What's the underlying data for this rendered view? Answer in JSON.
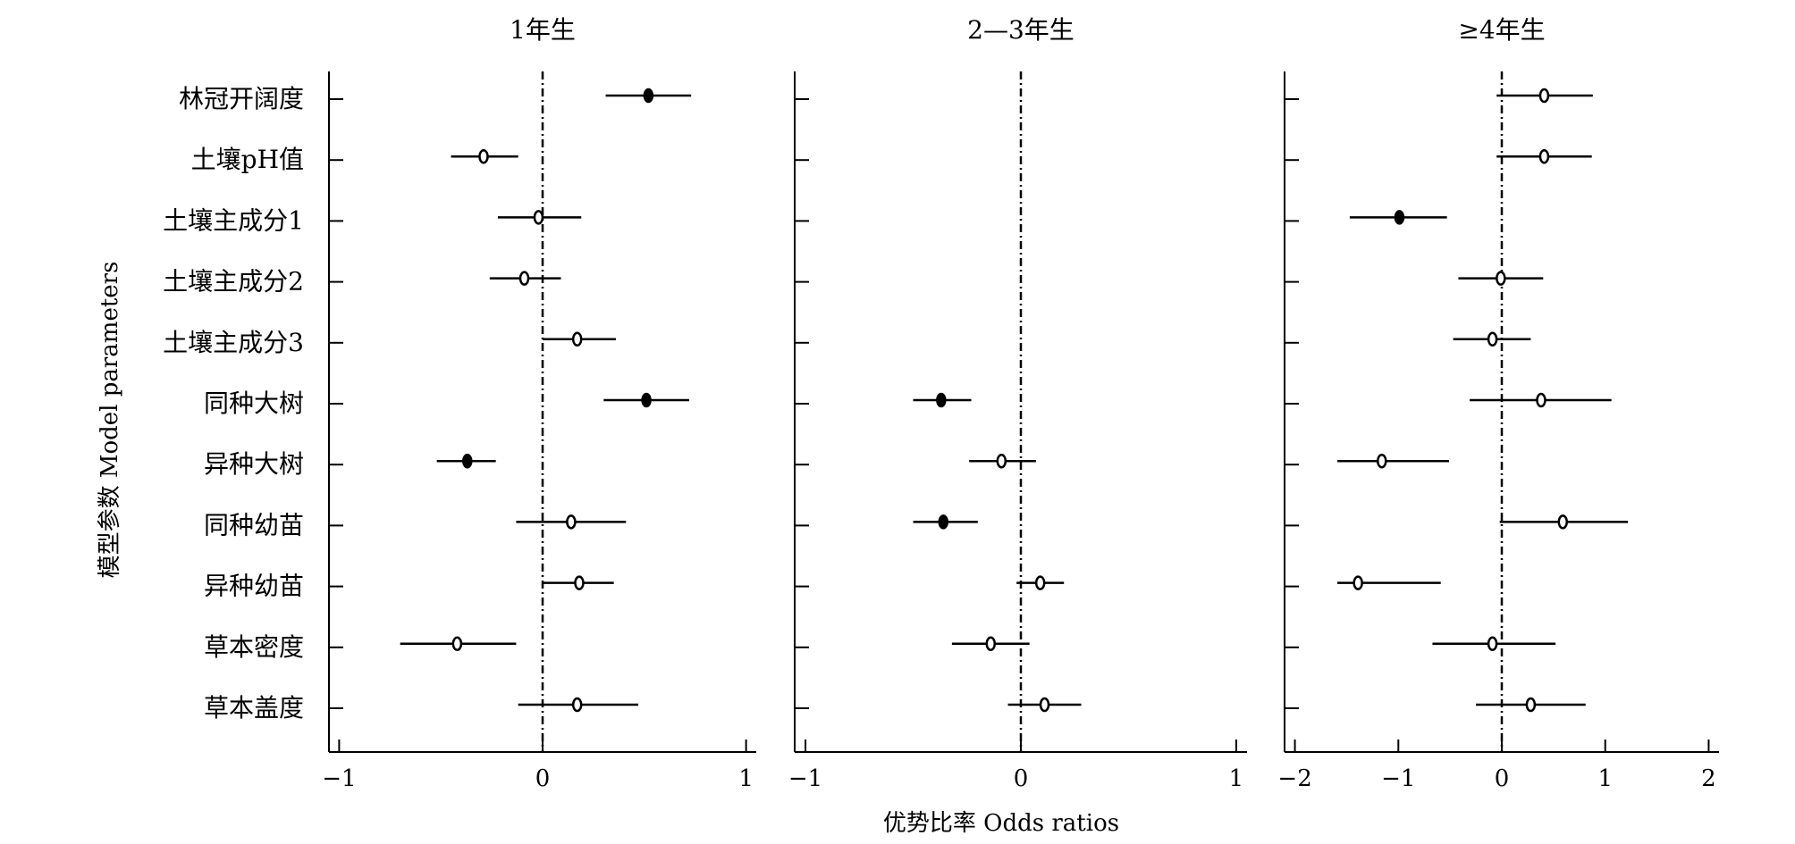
{
  "chart_data": {
    "type": "forest",
    "ylabel": "模型参数 Model parameters",
    "xlabel": "优势比率 Odds ratios",
    "reference_line": 0,
    "parameters": [
      "林冠开阔度",
      "土壤pH值",
      "土壤主成分1",
      "土壤主成分2",
      "土壤主成分3",
      "同种大树",
      "异种大树",
      "同种幼苗",
      "异种幼苗",
      "草本密度",
      "草本盖度"
    ],
    "panels": [
      {
        "title": "1年生",
        "xlim": [
          -1.05,
          1.05
        ],
        "xticks": [
          -1,
          0,
          1
        ],
        "xtick_labels": [
          "−1",
          "0",
          "1"
        ],
        "points": [
          {
            "param": "林冠开阔度",
            "estimate": 0.52,
            "lower": 0.31,
            "upper": 0.73,
            "significant": true
          },
          {
            "param": "土壤pH值",
            "estimate": -0.29,
            "lower": -0.45,
            "upper": -0.12,
            "significant": false
          },
          {
            "param": "土壤主成分1",
            "estimate": -0.02,
            "lower": -0.22,
            "upper": 0.19,
            "significant": false
          },
          {
            "param": "土壤主成分2",
            "estimate": -0.09,
            "lower": -0.26,
            "upper": 0.09,
            "significant": false
          },
          {
            "param": "土壤主成分3",
            "estimate": 0.17,
            "lower": 0.0,
            "upper": 0.36,
            "significant": false
          },
          {
            "param": "同种大树",
            "estimate": 0.51,
            "lower": 0.3,
            "upper": 0.72,
            "significant": true
          },
          {
            "param": "异种大树",
            "estimate": -0.37,
            "lower": -0.52,
            "upper": -0.23,
            "significant": true
          },
          {
            "param": "同种幼苗",
            "estimate": 0.14,
            "lower": -0.13,
            "upper": 0.41,
            "significant": false
          },
          {
            "param": "异种幼苗",
            "estimate": 0.18,
            "lower": 0.0,
            "upper": 0.35,
            "significant": false
          },
          {
            "param": "草本密度",
            "estimate": -0.42,
            "lower": -0.7,
            "upper": -0.13,
            "significant": false
          },
          {
            "param": "草本盖度",
            "estimate": 0.17,
            "lower": -0.12,
            "upper": 0.47,
            "significant": false
          }
        ]
      },
      {
        "title": "2—3年生",
        "xlim": [
          -1.05,
          1.05
        ],
        "xticks": [
          -1,
          0,
          1
        ],
        "xtick_labels": [
          "−1",
          "0",
          "1"
        ],
        "points": [
          {
            "param": "同种大树",
            "estimate": -0.37,
            "lower": -0.5,
            "upper": -0.23,
            "significant": true
          },
          {
            "param": "异种大树",
            "estimate": -0.09,
            "lower": -0.24,
            "upper": 0.07,
            "significant": false
          },
          {
            "param": "同种幼苗",
            "estimate": -0.36,
            "lower": -0.5,
            "upper": -0.2,
            "significant": true
          },
          {
            "param": "异种幼苗",
            "estimate": 0.09,
            "lower": -0.02,
            "upper": 0.2,
            "significant": false
          },
          {
            "param": "草本密度",
            "estimate": -0.14,
            "lower": -0.32,
            "upper": 0.04,
            "significant": false
          },
          {
            "param": "草本盖度",
            "estimate": 0.11,
            "lower": -0.06,
            "upper": 0.28,
            "significant": false
          }
        ]
      },
      {
        "title": "≥4年生",
        "xlim": [
          -2.1,
          2.1
        ],
        "xticks": [
          -2,
          -1,
          0,
          1,
          2
        ],
        "xtick_labels": [
          "−2",
          "−1",
          "0",
          "1",
          "2"
        ],
        "points": [
          {
            "param": "林冠开阔度",
            "estimate": 0.41,
            "lower": -0.05,
            "upper": 0.88,
            "significant": false
          },
          {
            "param": "土壤pH值",
            "estimate": 0.41,
            "lower": -0.05,
            "upper": 0.87,
            "significant": false
          },
          {
            "param": "土壤主成分1",
            "estimate": -0.99,
            "lower": -1.47,
            "upper": -0.53,
            "significant": true
          },
          {
            "param": "土壤主成分2",
            "estimate": -0.01,
            "lower": -0.42,
            "upper": 0.4,
            "significant": false
          },
          {
            "param": "土壤主成分3",
            "estimate": -0.09,
            "lower": -0.47,
            "upper": 0.28,
            "significant": false
          },
          {
            "param": "同种大树",
            "estimate": 0.38,
            "lower": -0.31,
            "upper": 1.06,
            "significant": false
          },
          {
            "param": "异种大树",
            "estimate": -1.16,
            "lower": -1.59,
            "upper": -0.51,
            "significant": false
          },
          {
            "param": "同种幼苗",
            "estimate": 0.59,
            "lower": -0.02,
            "upper": 1.22,
            "significant": false
          },
          {
            "param": "异种幼苗",
            "estimate": -1.39,
            "lower": -1.59,
            "upper": -0.59,
            "significant": false
          },
          {
            "param": "草本密度",
            "estimate": -0.09,
            "lower": -0.67,
            "upper": 0.52,
            "significant": false
          },
          {
            "param": "草本盖度",
            "estimate": 0.28,
            "lower": -0.25,
            "upper": 0.81,
            "significant": false
          }
        ]
      }
    ]
  }
}
